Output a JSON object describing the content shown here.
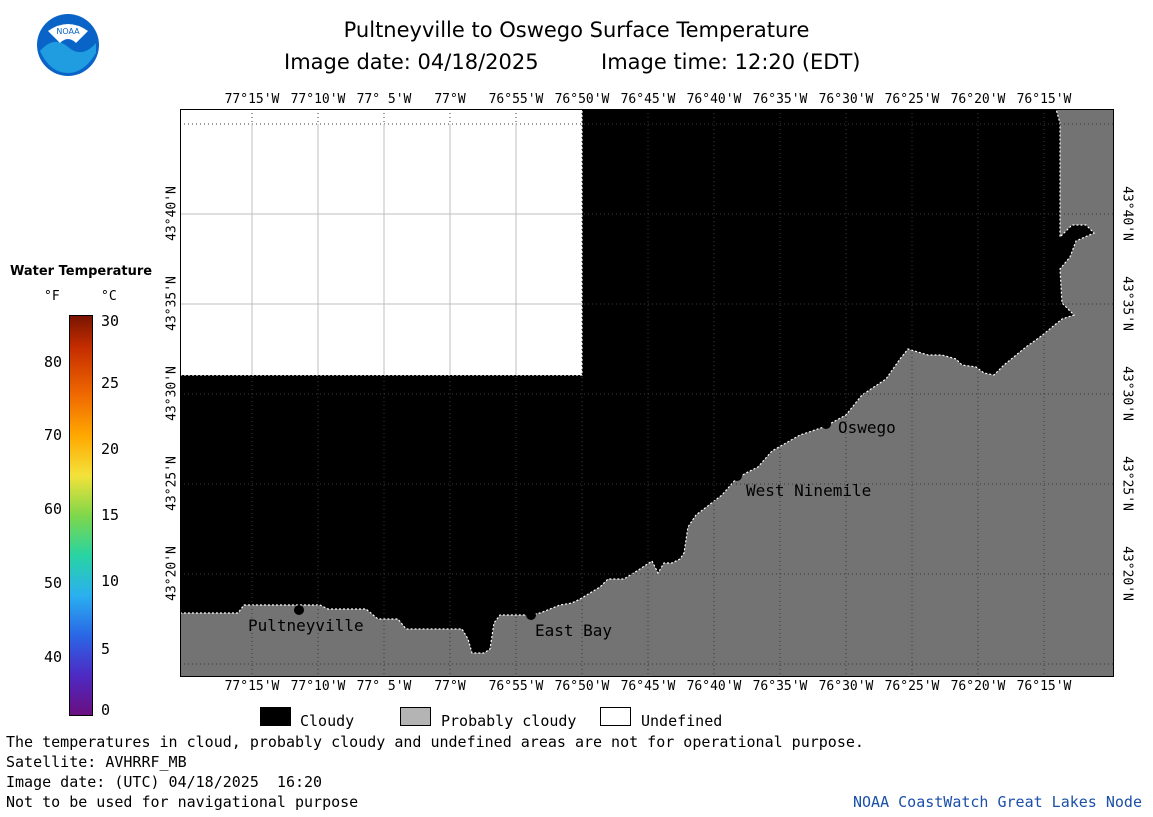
{
  "header": {
    "title": "Pultneyville to Oswego Surface Temperature",
    "date_label": "Image date: 04/18/2025",
    "time_label": "Image time: 12:20 (EDT)"
  },
  "lon_ticks": [
    "77°15'W",
    "77°10'W",
    "77° 5'W",
    "77°W",
    "76°55'W",
    "76°50'W",
    "76°45'W",
    "76°40'W",
    "76°35'W",
    "76°30'W",
    "76°25'W",
    "76°20'W",
    "76°15'W"
  ],
  "lat_ticks": [
    "43°40'N",
    "43°35'N",
    "43°30'N",
    "43°25'N",
    "43°20'N"
  ],
  "places": [
    {
      "name": "Pultneyville"
    },
    {
      "name": "East Bay"
    },
    {
      "name": "West Ninemile"
    },
    {
      "name": "Oswego"
    }
  ],
  "colorbar": {
    "title": "Water Temperature",
    "unit_f": "°F",
    "unit_c": "°C",
    "f_ticks": [
      "80",
      "70",
      "60",
      "50",
      "40"
    ],
    "c_ticks": [
      "30",
      "25",
      "20",
      "15",
      "10",
      "5",
      "0"
    ]
  },
  "legend": {
    "cloudy": "Cloudy",
    "probably_cloudy": "Probably cloudy",
    "undefined": "Undefined",
    "colors": {
      "cloudy": "#000000",
      "probably_cloudy": "#b4b4b4",
      "undefined": "#ffffff",
      "land": "#737373"
    }
  },
  "footer": {
    "disclaimer": "The temperatures in cloud, probably cloudy and undefined areas are not for operational purpose.",
    "satellite": "Satellite: AVHRRF_MB",
    "utc_date": "Image date: (UTC) 04/18/2025  16:20",
    "nav_warning": "Not to be used for navigational purpose",
    "credit": "NOAA CoastWatch Great Lakes Node"
  },
  "logo": {
    "text": "NOAA"
  }
}
